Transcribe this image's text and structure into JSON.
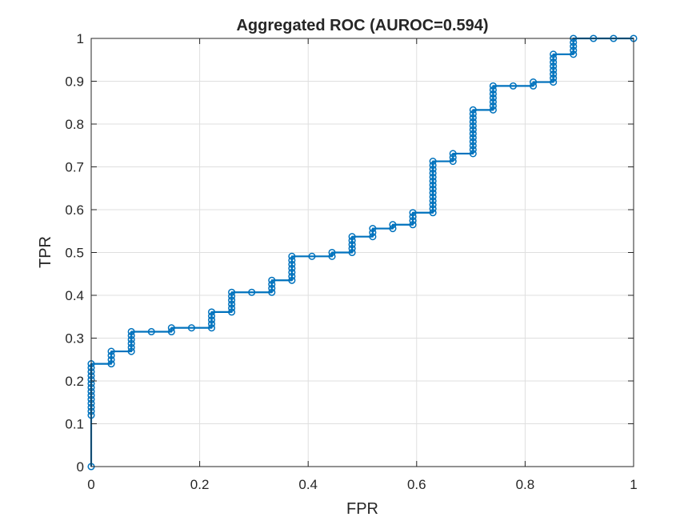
{
  "chart_data": {
    "type": "line",
    "title": "Aggregated ROC (AUROC=0.594)",
    "xlabel": "FPR",
    "ylabel": "TPR",
    "xlim": [
      0,
      1
    ],
    "ylim": [
      0,
      1
    ],
    "xticks": [
      0,
      0.2,
      0.4,
      0.6,
      0.8,
      1
    ],
    "xtick_labels": [
      "0",
      "0.2",
      "0.4",
      "0.6",
      "0.8",
      "1"
    ],
    "yticks": [
      0,
      0.1,
      0.2,
      0.3,
      0.4,
      0.5,
      0.6,
      0.7,
      0.8,
      0.9,
      1
    ],
    "ytick_labels": [
      "0",
      "0.1",
      "0.2",
      "0.3",
      "0.4",
      "0.5",
      "0.6",
      "0.7",
      "0.8",
      "0.9",
      "1"
    ],
    "grid": true,
    "line_color": "#0072bd",
    "marker": "circle",
    "series": [
      {
        "style": "step-with-markers",
        "columns": [
          {
            "x": 0.0,
            "y0": 0.0,
            "y1": 0.0
          },
          {
            "x": 0.0,
            "y0": 0.12,
            "y1": 0.24
          },
          {
            "x": 0.037,
            "y0": 0.24,
            "y1": 0.269
          },
          {
            "x": 0.074,
            "y0": 0.269,
            "y1": 0.315
          },
          {
            "x": 0.111,
            "y0": 0.315,
            "y1": 0.315
          },
          {
            "x": 0.148,
            "y0": 0.315,
            "y1": 0.324
          },
          {
            "x": 0.185,
            "y0": 0.324,
            "y1": 0.324
          },
          {
            "x": 0.222,
            "y0": 0.324,
            "y1": 0.361
          },
          {
            "x": 0.259,
            "y0": 0.361,
            "y1": 0.407
          },
          {
            "x": 0.296,
            "y0": 0.407,
            "y1": 0.407
          },
          {
            "x": 0.333,
            "y0": 0.407,
            "y1": 0.435
          },
          {
            "x": 0.37,
            "y0": 0.435,
            "y1": 0.491
          },
          {
            "x": 0.407,
            "y0": 0.491,
            "y1": 0.491
          },
          {
            "x": 0.444,
            "y0": 0.491,
            "y1": 0.5
          },
          {
            "x": 0.481,
            "y0": 0.5,
            "y1": 0.537
          },
          {
            "x": 0.519,
            "y0": 0.537,
            "y1": 0.556
          },
          {
            "x": 0.556,
            "y0": 0.556,
            "y1": 0.565
          },
          {
            "x": 0.593,
            "y0": 0.565,
            "y1": 0.593
          },
          {
            "x": 0.63,
            "y0": 0.593,
            "y1": 0.713
          },
          {
            "x": 0.667,
            "y0": 0.713,
            "y1": 0.731
          },
          {
            "x": 0.704,
            "y0": 0.731,
            "y1": 0.833
          },
          {
            "x": 0.741,
            "y0": 0.833,
            "y1": 0.889
          },
          {
            "x": 0.778,
            "y0": 0.889,
            "y1": 0.889
          },
          {
            "x": 0.815,
            "y0": 0.889,
            "y1": 0.898
          },
          {
            "x": 0.852,
            "y0": 0.898,
            "y1": 0.963
          },
          {
            "x": 0.889,
            "y0": 0.963,
            "y1": 1.0
          },
          {
            "x": 0.926,
            "y0": 1.0,
            "y1": 1.0
          },
          {
            "x": 0.963,
            "y0": 1.0,
            "y1": 1.0
          },
          {
            "x": 1.0,
            "y0": 1.0,
            "y1": 1.0
          }
        ]
      }
    ]
  }
}
